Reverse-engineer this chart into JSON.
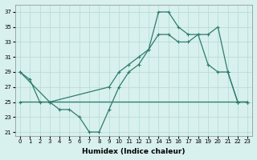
{
  "line1_x": [
    0,
    1,
    2,
    3,
    4,
    5,
    6,
    7,
    8,
    9,
    10,
    11,
    12,
    13,
    14,
    15,
    16,
    17,
    18,
    19,
    20,
    21,
    22,
    23
  ],
  "line1_y": [
    29,
    28,
    25,
    25,
    24,
    24,
    23,
    21,
    21,
    24,
    27,
    29,
    30,
    32,
    37,
    37,
    35,
    34,
    34,
    34,
    35,
    29,
    25,
    25
  ],
  "line2_x": [
    0,
    3,
    9,
    10,
    11,
    12,
    13,
    14,
    15,
    16,
    17,
    18,
    19,
    20,
    21,
    22,
    23
  ],
  "line2_y": [
    25,
    25,
    27,
    29,
    30,
    31,
    32,
    34,
    34,
    33,
    33,
    34,
    30,
    29,
    29,
    25,
    25
  ],
  "line3_x": [
    0,
    3,
    22,
    23
  ],
  "line3_y": [
    29,
    25,
    25,
    25
  ],
  "line_color": "#2e7d6e",
  "bg_color": "#d8f0ee",
  "grid_color": "#b0dbd6",
  "xlabel": "Humidex (Indice chaleur)",
  "xlim": [
    -0.5,
    23.5
  ],
  "ylim": [
    20.5,
    38
  ],
  "xticks": [
    0,
    1,
    2,
    3,
    4,
    5,
    6,
    7,
    8,
    9,
    10,
    11,
    12,
    13,
    14,
    15,
    16,
    17,
    18,
    19,
    20,
    21,
    22,
    23
  ],
  "yticks": [
    21,
    23,
    25,
    27,
    29,
    31,
    33,
    35,
    37
  ],
  "marker": "+",
  "markersize": 3,
  "linewidth": 0.9,
  "tick_fontsize": 5,
  "xlabel_fontsize": 6.5
}
